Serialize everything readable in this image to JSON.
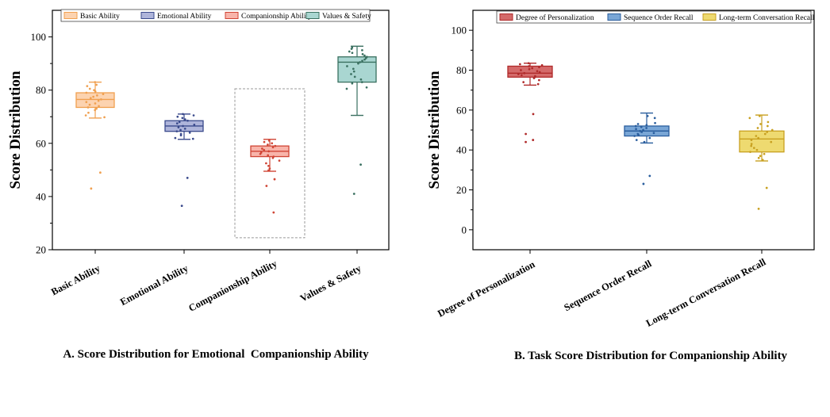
{
  "chart_data": [
    {
      "type": "box",
      "caption": "A. Score Distribution for Emotional  Companionship Ability",
      "ylabel": "Score Distribution",
      "ylim": [
        20,
        110
      ],
      "yticks": [
        20,
        40,
        60,
        80,
        100
      ],
      "highlight": {
        "category": "Companionship Ability",
        "range": [
          24.5,
          80.5
        ]
      },
      "series": [
        {
          "name": "Basic Ability",
          "color": "#F0A050",
          "fill": "#FCD3B0",
          "whisker_low": 69.5,
          "q1": 73.5,
          "median": 76.5,
          "q3": 79.0,
          "whisker_high": 83.0,
          "points": [
            83,
            82,
            81.5,
            80.5,
            80,
            79.5,
            79,
            78.5,
            78,
            77.5,
            77,
            76.5,
            76,
            75.5,
            75,
            74.5,
            74,
            73.5,
            73,
            72.5,
            71.5,
            70.5,
            69.8
          ],
          "outliers": [
            49,
            43
          ]
        },
        {
          "name": "Emotional Ability",
          "color": "#3A4A8C",
          "fill": "#AEB4DA",
          "whisker_low": 61.5,
          "q1": 64.5,
          "median": 66.5,
          "q3": 68.5,
          "whisker_high": 71.0,
          "points": [
            71,
            70.5,
            70,
            69.5,
            69,
            68.5,
            68,
            67.5,
            67,
            66.5,
            66,
            65.5,
            65,
            64.5,
            64,
            63.5,
            63,
            62,
            61.7
          ],
          "outliers": [
            47,
            36.5
          ]
        },
        {
          "name": "Companionship Ability",
          "color": "#D04535",
          "fill": "#F8B4AA",
          "whisker_low": 49.5,
          "q1": 55.0,
          "median": 57.0,
          "q3": 59.0,
          "whisker_high": 61.5,
          "points": [
            61,
            60.5,
            60,
            59.5,
            59,
            58.5,
            58,
            57.5,
            57,
            56.5,
            56,
            55.5,
            55,
            54.5,
            53.5,
            52.5,
            51.5,
            50.5,
            49.8
          ],
          "outliers": [
            46.5,
            44,
            34
          ]
        },
        {
          "name": "Values & Safety",
          "color": "#3A7060",
          "fill": "#A9D6D1",
          "whisker_low": 70.5,
          "q1": 83.0,
          "median": 90.5,
          "q3": 92.5,
          "whisker_high": 96.5,
          "points": [
            96,
            95.5,
            95,
            94.5,
            94,
            93.5,
            93,
            92.5,
            92,
            91.5,
            91,
            90.5,
            90,
            89,
            88,
            87,
            86,
            85,
            84,
            83,
            82.5,
            81,
            80.5
          ],
          "outliers": [
            52,
            41
          ]
        }
      ]
    },
    {
      "type": "box",
      "caption": "B. Task Score Distribution for Companionship Ability",
      "ylabel": "Score Distribution",
      "ylim": [
        -10,
        110
      ],
      "yticks": [
        0,
        20,
        40,
        60,
        80,
        100
      ],
      "series": [
        {
          "name": "Degree of Personalization",
          "color": "#B02A2A",
          "fill": "#D46A6A",
          "whisker_low": 72.5,
          "q1": 76.5,
          "median": 78.5,
          "q3": 82.0,
          "whisker_high": 83.5,
          "points": [
            83.5,
            83,
            82.5,
            82,
            81.5,
            81,
            80.5,
            80,
            79.5,
            79,
            78.5,
            78,
            77.5,
            77,
            76.5,
            76,
            75,
            74,
            73
          ],
          "outliers": [
            58,
            48,
            45,
            44
          ]
        },
        {
          "name": "Sequence Order Recall",
          "color": "#2A5E9E",
          "fill": "#79A6D6",
          "whisker_low": 43.5,
          "q1": 47.0,
          "median": 49.5,
          "q3": 52.0,
          "whisker_high": 58.5,
          "points": [
            57,
            56,
            53.5,
            53,
            52.5,
            52,
            51.5,
            51,
            50.5,
            50,
            49.5,
            49,
            48.5,
            48,
            47.5,
            47,
            46,
            45,
            44
          ],
          "outliers": [
            27,
            23
          ]
        },
        {
          "name": "Long-term Conversation Recall",
          "color": "#C8A020",
          "fill": "#EEDA70",
          "whisker_low": 34.5,
          "q1": 39.0,
          "median": 45.5,
          "q3": 49.5,
          "whisker_high": 57.5,
          "points": [
            57,
            56,
            54,
            53,
            52,
            51,
            50,
            49,
            48,
            47,
            46,
            45,
            44,
            43,
            42,
            41,
            40,
            39,
            38,
            37,
            36,
            35
          ],
          "outliers": [
            21,
            10.5
          ]
        }
      ]
    }
  ]
}
